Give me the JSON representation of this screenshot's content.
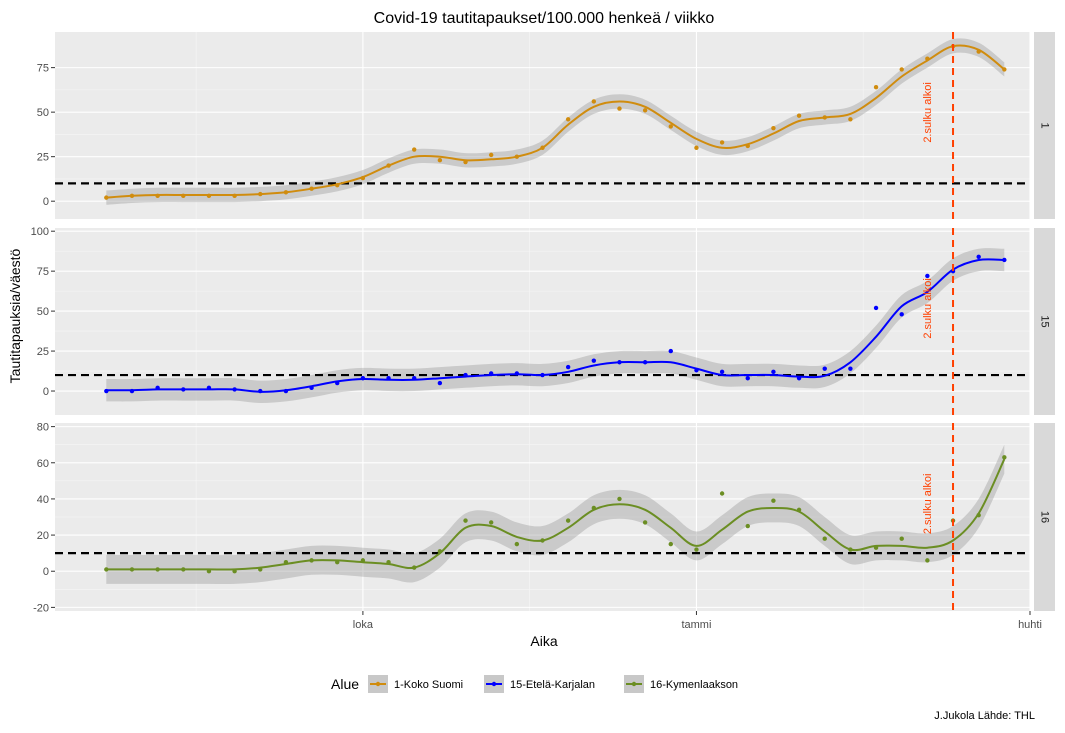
{
  "chart_data": {
    "type": "line",
    "title": "Covid-19 tautitapaukset/100.000 henkeä / viikko",
    "xlabel": "Aika",
    "ylabel": "Tautitapauksia/väestö",
    "x_ticks": [
      "loka",
      "tammi",
      "huhti"
    ],
    "x_tick_weeks": [
      40,
      53,
      66
    ],
    "x_range_weeks": [
      28,
      66
    ],
    "threshold": 10,
    "annotation": {
      "text": "2.sulku alkoi",
      "week": 63
    },
    "caption": "J.Jukola  Lähde: THL",
    "legend": {
      "title": "Alue",
      "position": "bottom",
      "items": [
        "1-Koko Suomi",
        "15-Etelä-Karjalan",
        "16-Kymenlaakson"
      ]
    },
    "facets": [
      {
        "strip": "1",
        "series_name": "1-Koko Suomi",
        "color": "#d08c0e",
        "ylim": [
          -10,
          95
        ],
        "yticks": [
          0,
          25,
          50,
          75
        ],
        "points": [
          [
            30,
            2
          ],
          [
            31,
            3
          ],
          [
            32,
            3
          ],
          [
            33,
            3
          ],
          [
            34,
            3
          ],
          [
            35,
            3
          ],
          [
            36,
            4
          ],
          [
            37,
            5
          ],
          [
            38,
            7
          ],
          [
            39,
            9
          ],
          [
            40,
            13
          ],
          [
            41,
            20
          ],
          [
            42,
            29
          ],
          [
            43,
            23
          ],
          [
            44,
            22
          ],
          [
            45,
            26
          ],
          [
            46,
            25
          ],
          [
            47,
            30
          ],
          [
            48,
            46
          ],
          [
            49,
            56
          ],
          [
            50,
            52
          ],
          [
            51,
            51
          ],
          [
            52,
            42
          ],
          [
            53,
            30
          ],
          [
            54,
            33
          ],
          [
            55,
            31
          ],
          [
            56,
            41
          ],
          [
            57,
            48
          ],
          [
            58,
            47
          ],
          [
            59,
            46
          ],
          [
            60,
            64
          ],
          [
            61,
            74
          ],
          [
            62,
            80
          ],
          [
            63,
            87
          ],
          [
            64,
            84
          ],
          [
            65,
            74
          ]
        ],
        "smooth": [
          [
            30,
            2
          ],
          [
            31,
            3
          ],
          [
            32,
            3.5
          ],
          [
            33,
            3.5
          ],
          [
            34,
            3.5
          ],
          [
            35,
            3.5
          ],
          [
            36,
            4
          ],
          [
            37,
            5
          ],
          [
            38,
            7
          ],
          [
            39,
            9.5
          ],
          [
            40,
            13.5
          ],
          [
            41,
            20
          ],
          [
            42,
            25
          ],
          [
            43,
            25
          ],
          [
            44,
            23
          ],
          [
            45,
            23.5
          ],
          [
            46,
            25
          ],
          [
            47,
            30
          ],
          [
            48,
            43
          ],
          [
            49,
            53
          ],
          [
            50,
            56
          ],
          [
            51,
            53
          ],
          [
            52,
            44
          ],
          [
            53,
            35
          ],
          [
            54,
            30
          ],
          [
            55,
            32
          ],
          [
            56,
            38
          ],
          [
            57,
            45
          ],
          [
            58,
            47
          ],
          [
            59,
            49
          ],
          [
            60,
            58
          ],
          [
            61,
            70
          ],
          [
            62,
            79
          ],
          [
            63,
            87
          ],
          [
            64,
            85
          ],
          [
            65,
            74
          ]
        ],
        "band": 4
      },
      {
        "strip": "15",
        "series_name": "15-Etelä-Karjalan",
        "color": "#0000ff",
        "ylim": [
          -15,
          102
        ],
        "yticks": [
          0,
          25,
          50,
          75,
          100
        ],
        "points": [
          [
            30,
            0
          ],
          [
            31,
            0
          ],
          [
            32,
            2
          ],
          [
            33,
            1
          ],
          [
            34,
            2
          ],
          [
            35,
            1
          ],
          [
            36,
            0
          ],
          [
            37,
            0
          ],
          [
            38,
            2
          ],
          [
            39,
            5
          ],
          [
            40,
            8
          ],
          [
            41,
            8
          ],
          [
            42,
            8
          ],
          [
            43,
            5
          ],
          [
            44,
            10
          ],
          [
            45,
            11
          ],
          [
            46,
            11
          ],
          [
            47,
            10
          ],
          [
            48,
            15
          ],
          [
            49,
            19
          ],
          [
            50,
            18
          ],
          [
            51,
            18
          ],
          [
            52,
            25
          ],
          [
            53,
            13
          ],
          [
            54,
            12
          ],
          [
            55,
            8
          ],
          [
            56,
            12
          ],
          [
            57,
            8
          ],
          [
            58,
            14
          ],
          [
            59,
            14
          ],
          [
            60,
            52
          ],
          [
            61,
            48
          ],
          [
            62,
            72
          ],
          [
            63,
            75
          ],
          [
            64,
            84
          ],
          [
            65,
            82
          ]
        ],
        "smooth": [
          [
            30,
            0.5
          ],
          [
            31,
            0.5
          ],
          [
            32,
            1
          ],
          [
            33,
            1
          ],
          [
            34,
            1
          ],
          [
            35,
            1
          ],
          [
            36,
            -0.5
          ],
          [
            37,
            0.5
          ],
          [
            38,
            3
          ],
          [
            39,
            6
          ],
          [
            40,
            7.5
          ],
          [
            41,
            7
          ],
          [
            42,
            7
          ],
          [
            43,
            8
          ],
          [
            44,
            9
          ],
          [
            45,
            10
          ],
          [
            46,
            10.5
          ],
          [
            47,
            10
          ],
          [
            48,
            12
          ],
          [
            49,
            16
          ],
          [
            50,
            18
          ],
          [
            51,
            18
          ],
          [
            52,
            18
          ],
          [
            53,
            14
          ],
          [
            54,
            10
          ],
          [
            55,
            10
          ],
          [
            56,
            10
          ],
          [
            57,
            9
          ],
          [
            58,
            9.5
          ],
          [
            59,
            18
          ],
          [
            60,
            34
          ],
          [
            61,
            53
          ],
          [
            62,
            62
          ],
          [
            63,
            76
          ],
          [
            64,
            82
          ],
          [
            65,
            82
          ]
        ],
        "band": 7
      },
      {
        "strip": "16",
        "series_name": "16-Kymenlaakson",
        "color": "#6b8e23",
        "ylim": [
          -22,
          82
        ],
        "yticks": [
          -20,
          0,
          20,
          40,
          60,
          80
        ],
        "points": [
          [
            30,
            1
          ],
          [
            31,
            1
          ],
          [
            32,
            1
          ],
          [
            33,
            1
          ],
          [
            34,
            0
          ],
          [
            35,
            0
          ],
          [
            36,
            1
          ],
          [
            37,
            5
          ],
          [
            38,
            6
          ],
          [
            39,
            5
          ],
          [
            40,
            6
          ],
          [
            41,
            5
          ],
          [
            42,
            2
          ],
          [
            43,
            11
          ],
          [
            44,
            28
          ],
          [
            45,
            27
          ],
          [
            46,
            15
          ],
          [
            47,
            17
          ],
          [
            48,
            28
          ],
          [
            49,
            35
          ],
          [
            50,
            40
          ],
          [
            51,
            27
          ],
          [
            52,
            15
          ],
          [
            53,
            12
          ],
          [
            54,
            43
          ],
          [
            55,
            25
          ],
          [
            56,
            39
          ],
          [
            57,
            34
          ],
          [
            58,
            18
          ],
          [
            59,
            12
          ],
          [
            60,
            13
          ],
          [
            61,
            18
          ],
          [
            62,
            6
          ],
          [
            63,
            28
          ],
          [
            64,
            31
          ],
          [
            65,
            63
          ]
        ],
        "smooth": [
          [
            30,
            1
          ],
          [
            31,
            1
          ],
          [
            32,
            1
          ],
          [
            33,
            1
          ],
          [
            34,
            1
          ],
          [
            35,
            1
          ],
          [
            36,
            2
          ],
          [
            37,
            4
          ],
          [
            38,
            6
          ],
          [
            39,
            6
          ],
          [
            40,
            5
          ],
          [
            41,
            4
          ],
          [
            42,
            2
          ],
          [
            43,
            10
          ],
          [
            44,
            24
          ],
          [
            45,
            25
          ],
          [
            46,
            19
          ],
          [
            47,
            17
          ],
          [
            48,
            24
          ],
          [
            49,
            34
          ],
          [
            50,
            37
          ],
          [
            51,
            34
          ],
          [
            52,
            24
          ],
          [
            53,
            14
          ],
          [
            54,
            23
          ],
          [
            55,
            33
          ],
          [
            56,
            35
          ],
          [
            57,
            33
          ],
          [
            58,
            22
          ],
          [
            59,
            12
          ],
          [
            60,
            14
          ],
          [
            61,
            14
          ],
          [
            62,
            13
          ],
          [
            63,
            17
          ],
          [
            64,
            32
          ],
          [
            65,
            62
          ]
        ],
        "band": 8
      }
    ]
  }
}
